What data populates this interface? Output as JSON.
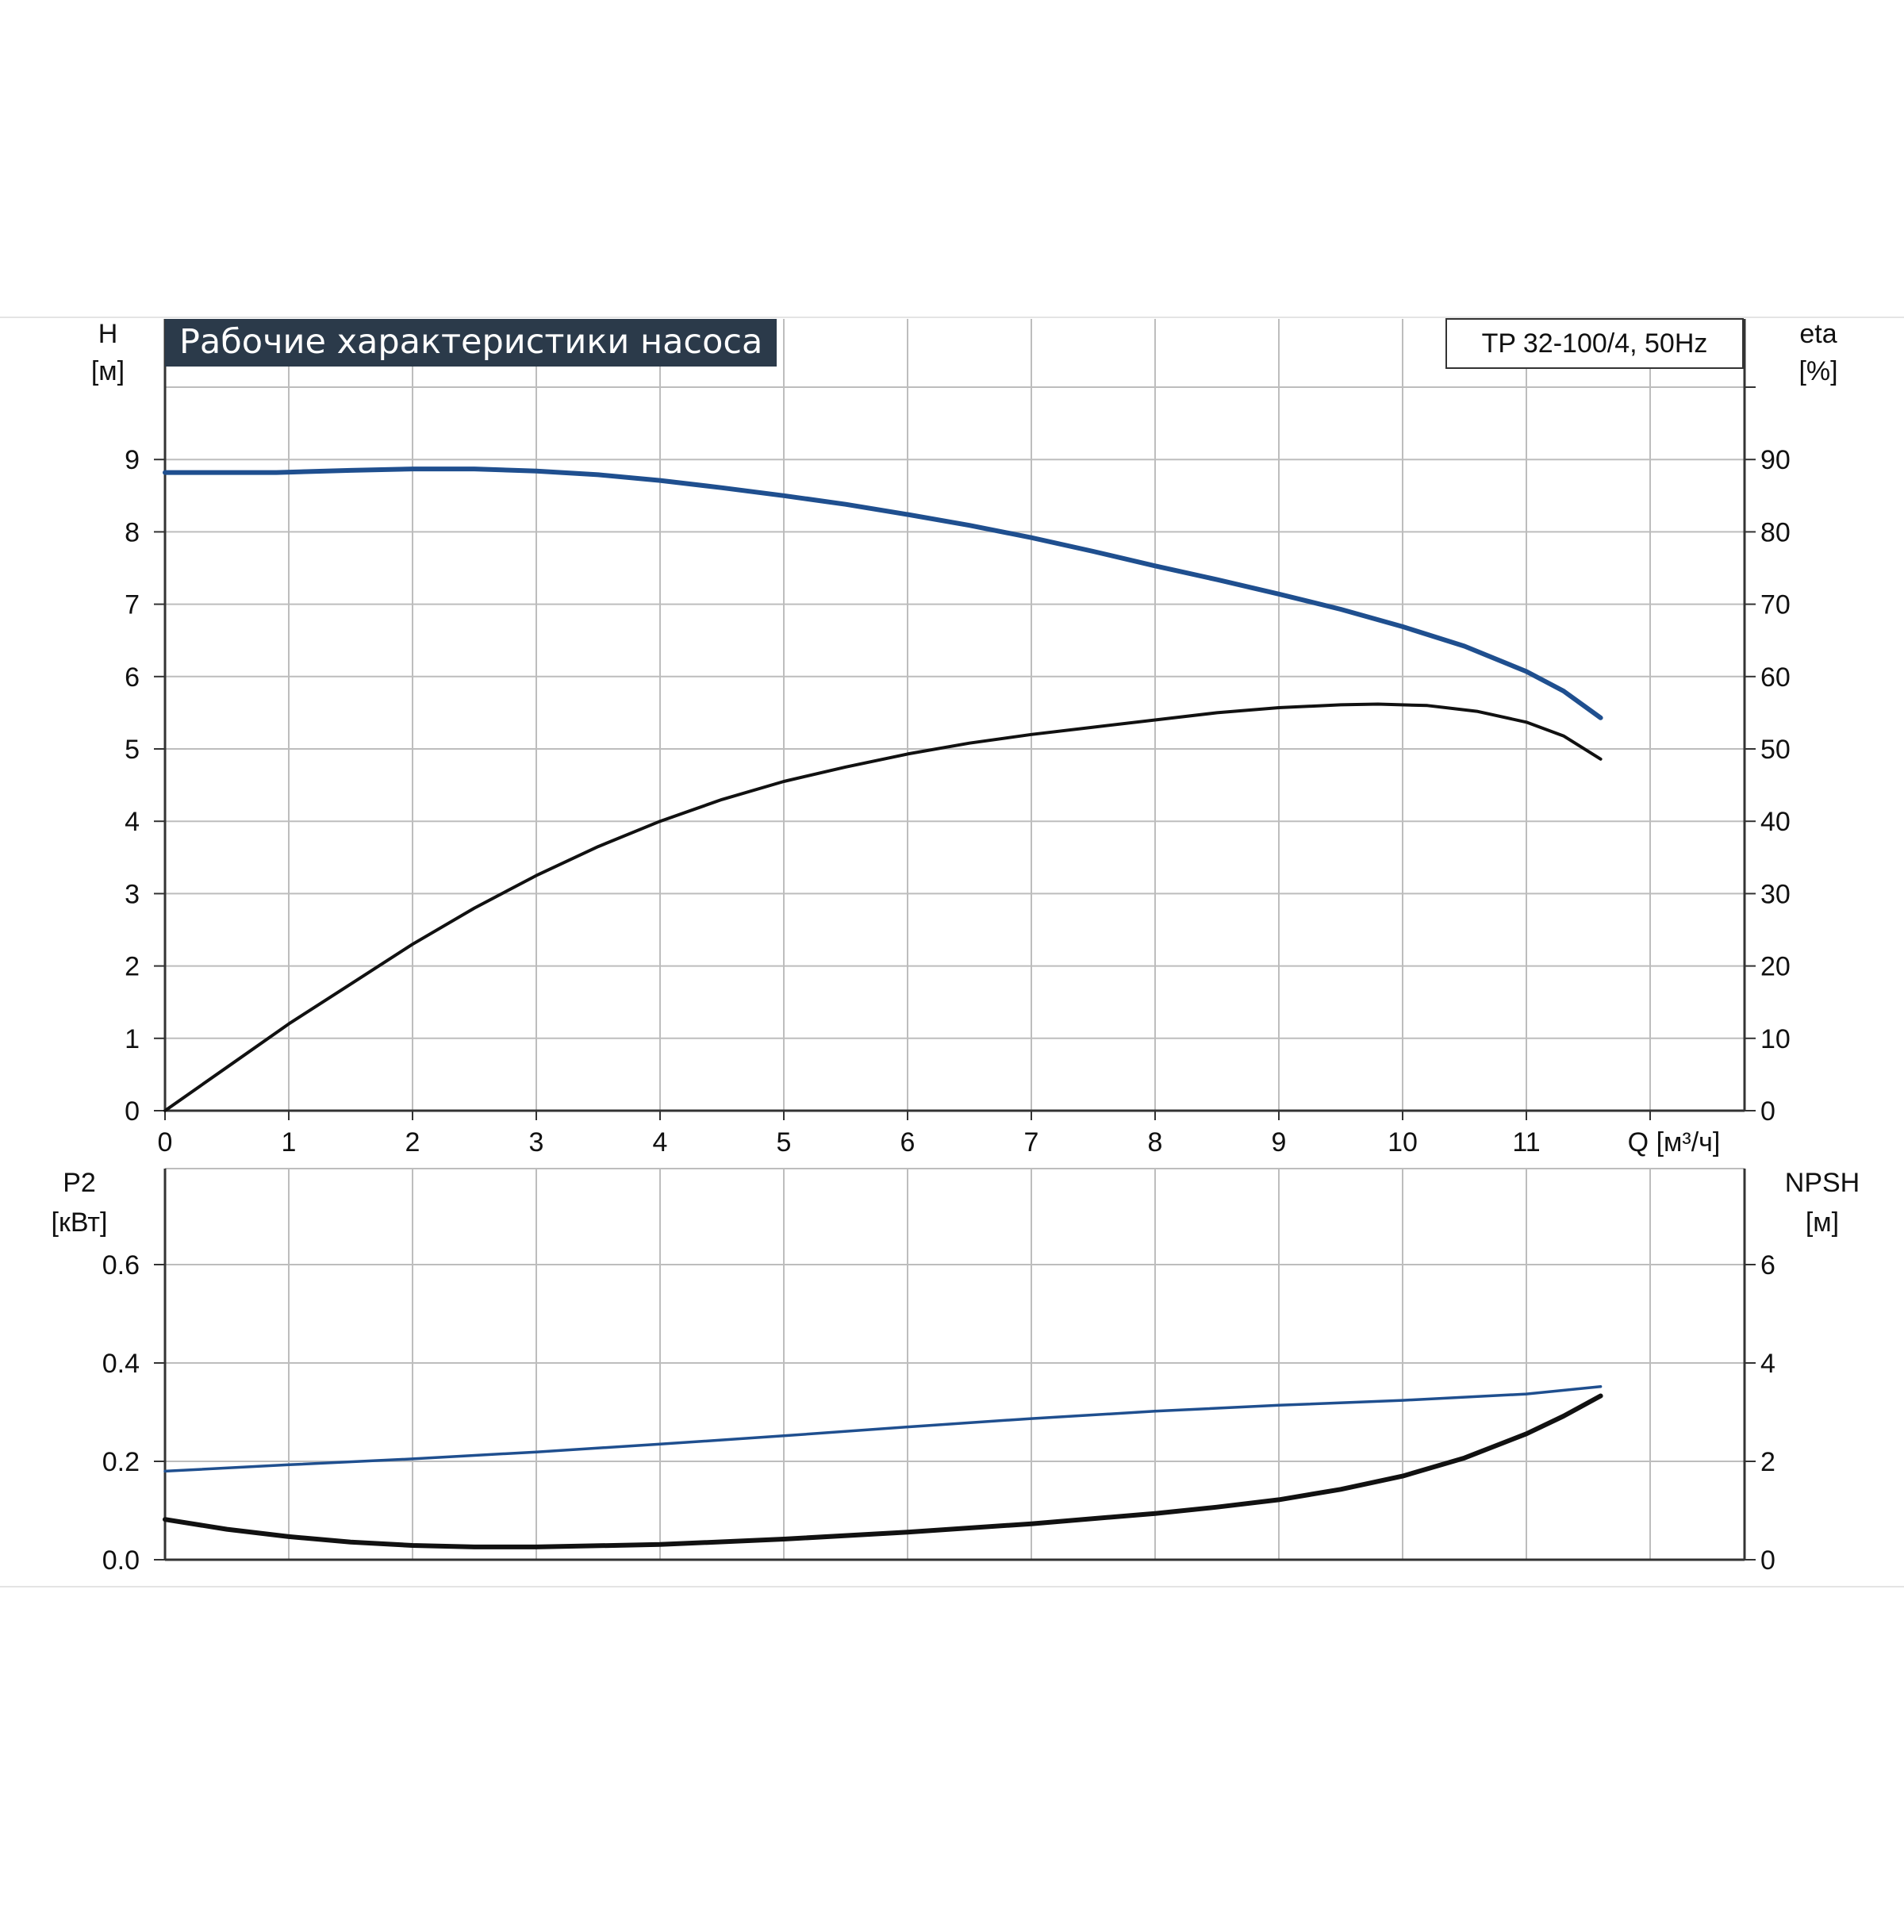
{
  "chart_data": [
    {
      "panel": "top",
      "type": "line",
      "title": "Рабочие характеристики насоса",
      "model_label": "TP 32-100/4, 50Hz",
      "ylabel_left": "H",
      "ylabel_left_unit": "[м]",
      "ylabel_right": "eta",
      "ylabel_right_unit": "[%]",
      "xlabel": "Q [м³/ч]",
      "xlim": [
        0,
        12.8
      ],
      "ylim_left": [
        0,
        10
      ],
      "ylim_right": [
        0,
        100
      ],
      "x_ticks": [
        "0",
        "1",
        "2",
        "3",
        "4",
        "5",
        "6",
        "7",
        "8",
        "9",
        "10",
        "11"
      ],
      "y_ticks_left": [
        "0",
        "1",
        "2",
        "3",
        "4",
        "5",
        "6",
        "7",
        "8",
        "9"
      ],
      "y_ticks_right": [
        "0",
        "10",
        "20",
        "30",
        "40",
        "50",
        "60",
        "70",
        "80",
        "90"
      ],
      "grid": true,
      "series": [
        {
          "axis": "left",
          "color": "#1f4f8f",
          "points": [
            [
              0,
              8.82
            ],
            [
              0.9,
              8.82
            ],
            [
              1.5,
              8.85
            ],
            [
              2.0,
              8.87
            ],
            [
              2.5,
              8.87
            ],
            [
              3.0,
              8.84
            ],
            [
              3.5,
              8.79
            ],
            [
              4.0,
              8.71
            ],
            [
              4.5,
              8.61
            ],
            [
              5.0,
              8.5
            ],
            [
              5.5,
              8.38
            ],
            [
              6.0,
              8.24
            ],
            [
              6.5,
              8.09
            ],
            [
              7.0,
              7.92
            ],
            [
              7.5,
              7.73
            ],
            [
              8.0,
              7.53
            ],
            [
              8.5,
              7.34
            ],
            [
              9.0,
              7.14
            ],
            [
              9.5,
              6.93
            ],
            [
              10.0,
              6.69
            ],
            [
              10.5,
              6.42
            ],
            [
              11.0,
              6.07
            ],
            [
              11.3,
              5.8
            ],
            [
              11.6,
              5.43
            ]
          ]
        },
        {
          "axis": "right",
          "color": "#111111",
          "points": [
            [
              0,
              0
            ],
            [
              0.5,
              6
            ],
            [
              1.0,
              12
            ],
            [
              1.5,
              17.5
            ],
            [
              2.0,
              23
            ],
            [
              2.5,
              28
            ],
            [
              3.0,
              32.5
            ],
            [
              3.5,
              36.5
            ],
            [
              4.0,
              40
            ],
            [
              4.5,
              43
            ],
            [
              5.0,
              45.5
            ],
            [
              5.5,
              47.5
            ],
            [
              6.0,
              49.3
            ],
            [
              6.5,
              50.8
            ],
            [
              7.0,
              52
            ],
            [
              7.5,
              53
            ],
            [
              8.0,
              54
            ],
            [
              8.5,
              55
            ],
            [
              9.0,
              55.7
            ],
            [
              9.5,
              56.1
            ],
            [
              9.8,
              56.2
            ],
            [
              10.2,
              56
            ],
            [
              10.6,
              55.2
            ],
            [
              11.0,
              53.7
            ],
            [
              11.3,
              51.8
            ],
            [
              11.6,
              48.6
            ]
          ]
        }
      ]
    },
    {
      "panel": "bottom",
      "type": "line",
      "ylabel_left": "P2",
      "ylabel_left_unit": "[кВт]",
      "ylabel_right": "NPSH",
      "ylabel_right_unit": "[м]",
      "xlim": [
        0,
        12.8
      ],
      "ylim_left": [
        0,
        0.8
      ],
      "ylim_right": [
        0,
        8
      ],
      "y_ticks_left": [
        "0.0",
        "0.2",
        "0.4",
        "0.6"
      ],
      "y_ticks_right": [
        "0",
        "2",
        "4",
        "6"
      ],
      "grid": true,
      "series": [
        {
          "axis": "left",
          "color": "#1f4f8f",
          "points": [
            [
              0,
              0.18
            ],
            [
              1.0,
              0.193
            ],
            [
              2.0,
              0.205
            ],
            [
              3.0,
              0.219
            ],
            [
              4.0,
              0.235
            ],
            [
              5.0,
              0.252
            ],
            [
              6.0,
              0.27
            ],
            [
              7.0,
              0.287
            ],
            [
              8.0,
              0.302
            ],
            [
              9.0,
              0.314
            ],
            [
              10.0,
              0.324
            ],
            [
              11.0,
              0.337
            ],
            [
              11.6,
              0.352
            ]
          ]
        },
        {
          "axis": "right",
          "color": "#111111",
          "points": [
            [
              0,
              0.82
            ],
            [
              0.5,
              0.62
            ],
            [
              1.0,
              0.47
            ],
            [
              1.5,
              0.36
            ],
            [
              2.0,
              0.29
            ],
            [
              2.5,
              0.26
            ],
            [
              3.0,
              0.26
            ],
            [
              4.0,
              0.31
            ],
            [
              5.0,
              0.42
            ],
            [
              6.0,
              0.56
            ],
            [
              7.0,
              0.73
            ],
            [
              8.0,
              0.94
            ],
            [
              8.5,
              1.07
            ],
            [
              9.0,
              1.22
            ],
            [
              9.5,
              1.43
            ],
            [
              10.0,
              1.7
            ],
            [
              10.5,
              2.07
            ],
            [
              11.0,
              2.56
            ],
            [
              11.3,
              2.92
            ],
            [
              11.6,
              3.33
            ]
          ]
        }
      ]
    }
  ]
}
